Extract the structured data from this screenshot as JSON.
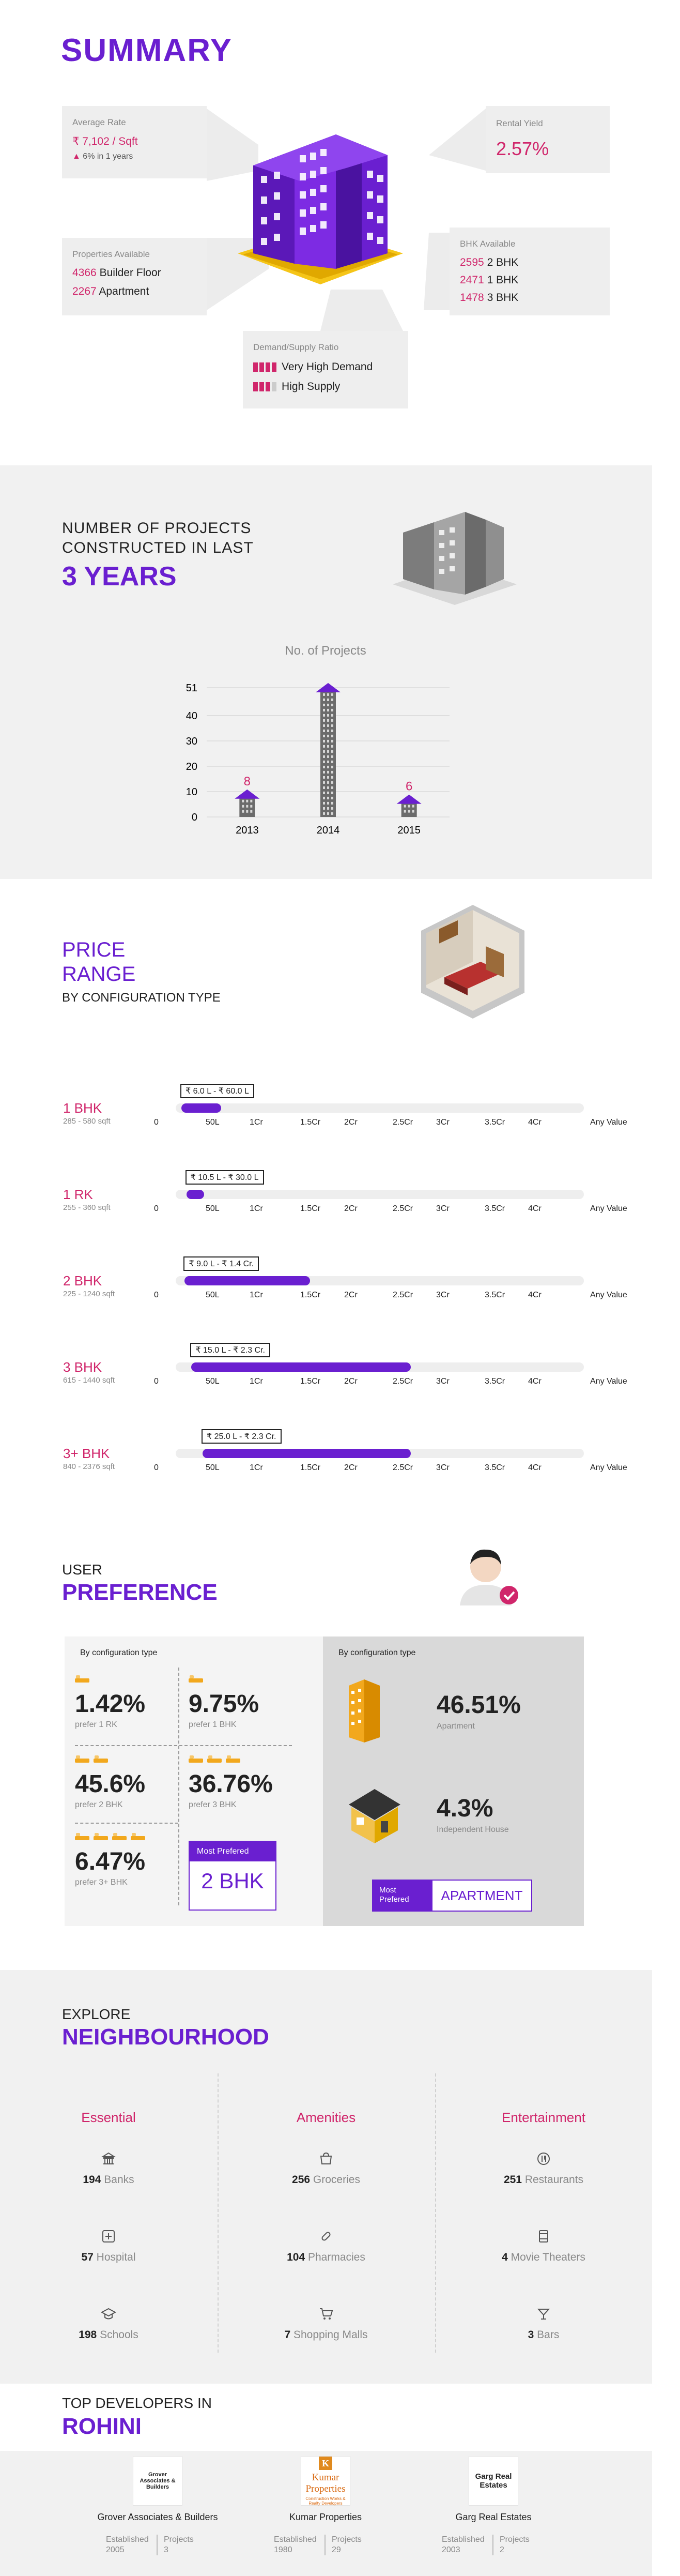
{
  "summary": {
    "title": "SUMMARY",
    "average_rate": {
      "label": "Average Rate",
      "value": "₹ 7,102 / Sqft",
      "change": "6% in 1 years"
    },
    "rental_yield": {
      "label": "Rental Yield",
      "value": "2.57%"
    },
    "properties_available": {
      "label": "Properties Available",
      "rows": [
        {
          "count": "4366",
          "type": "Builder Floor"
        },
        {
          "count": "2267",
          "type": "Apartment"
        }
      ]
    },
    "bhk_available": {
      "label": "BHK Available",
      "rows": [
        {
          "count": "2595",
          "type": "2 BHK"
        },
        {
          "count": "2471",
          "type": "1 BHK"
        },
        {
          "count": "1478",
          "type": "3 BHK"
        }
      ]
    },
    "demand_supply": {
      "label": "Demand/Supply Ratio",
      "rows": [
        {
          "text": "Very High Demand",
          "level": 4
        },
        {
          "text": "High Supply",
          "level": 3
        }
      ]
    },
    "colors": {
      "accent": "#6a1fd0",
      "highlight": "#d0266b",
      "yellow": "#f5c518"
    }
  },
  "projects": {
    "heading_line1": "NUMBER OF PROJECTS",
    "heading_line2": "CONSTRUCTED IN LAST",
    "heading_big": "3 YEARS",
    "chart_data": {
      "type": "bar",
      "title": "No. of Projects",
      "categories": [
        "2013",
        "2014",
        "2015"
      ],
      "values": [
        8,
        50,
        6
      ],
      "yticks": [
        "0",
        "10",
        "20",
        "30",
        "40",
        "51"
      ],
      "ylim": [
        0,
        51
      ],
      "grid": true
    }
  },
  "price_range": {
    "heading_line1": "PRICE",
    "heading_line2": "RANGE",
    "heading_sub": "BY CONFIGURATION TYPE",
    "axis": [
      "0",
      "50L",
      "1Cr",
      "1.5Cr",
      "2Cr",
      "2.5Cr",
      "3Cr",
      "3.5Cr",
      "4Cr",
      "Any Value"
    ],
    "rows": [
      {
        "name": "1 BHK",
        "sqft": "285 - 580 sqft",
        "tag": "₹ 6.0 L - ₹ 60.0 L",
        "min": 0.06,
        "max": 0.6
      },
      {
        "name": "1 RK",
        "sqft": "255 - 360 sqft",
        "tag": "₹ 10.5 L - ₹ 30.0 L",
        "min": 0.105,
        "max": 0.3
      },
      {
        "name": "2 BHK",
        "sqft": "225 - 1240 sqft",
        "tag": "₹ 9.0 L - ₹ 1.4 Cr.",
        "min": 0.09,
        "max": 1.4
      },
      {
        "name": "3 BHK",
        "sqft": "615 - 1440 sqft",
        "tag": "₹ 15.0 L - ₹ 2.3 Cr.",
        "min": 0.15,
        "max": 2.3
      },
      {
        "name": "3+ BHK",
        "sqft": "840 - 2376 sqft",
        "tag": "₹ 25.0 L - ₹ 2.3 Cr.",
        "min": 0.25,
        "max": 2.3
      }
    ]
  },
  "preference": {
    "heading_small": "USER",
    "heading_big": "PREFERENCE",
    "left_label": "By configuration type",
    "right_label": "By configuration type",
    "cells": [
      {
        "pct": "1.42%",
        "sub": "prefer 1 RK",
        "beds": 1
      },
      {
        "pct": "9.75%",
        "sub": "prefer 1 BHK",
        "beds": 1
      },
      {
        "pct": "45.6%",
        "sub": "prefer 2 BHK",
        "beds": 2
      },
      {
        "pct": "36.76%",
        "sub": "prefer 3 BHK",
        "beds": 3
      },
      {
        "pct": "6.47%",
        "sub": "prefer 3+ BHK",
        "beds": 4
      }
    ],
    "most_preferred_label": "Most Prefered",
    "most_preferred_value": "2 BHK",
    "types": [
      {
        "pct": "46.51%",
        "sub": "Apartment"
      },
      {
        "pct": "4.3%",
        "sub": "Independent House"
      }
    ],
    "type_most_preferred_label": "Most Prefered",
    "type_most_preferred_value": "APARTMENT"
  },
  "neighbourhood": {
    "heading_small": "EXPLORE",
    "heading_big": "NEIGHBOURHOOD",
    "columns": [
      {
        "title": "Essential",
        "items": [
          {
            "count": "194",
            "name": "Banks",
            "icon": "bank-icon"
          },
          {
            "count": "57",
            "name": "Hospital",
            "icon": "hospital-icon"
          },
          {
            "count": "198",
            "name": "Schools",
            "icon": "school-icon"
          }
        ]
      },
      {
        "title": "Amenities",
        "items": [
          {
            "count": "256",
            "name": "Groceries",
            "icon": "grocery-icon"
          },
          {
            "count": "104",
            "name": "Pharmacies",
            "icon": "pharmacy-icon"
          },
          {
            "count": "7",
            "name": "Shopping Malls",
            "icon": "cart-icon"
          }
        ]
      },
      {
        "title": "Entertainment",
        "items": [
          {
            "count": "251",
            "name": "Restaurants",
            "icon": "restaurant-icon"
          },
          {
            "count": "4",
            "name": "Movie Theaters",
            "icon": "movie-icon"
          },
          {
            "count": "3",
            "name": "Bars",
            "icon": "cocktail-icon"
          }
        ]
      }
    ]
  },
  "developers": {
    "heading_small": "TOP DEVELOPERS IN",
    "heading_big": "ROHINI",
    "established_label": "Established",
    "projects_label": "Projects",
    "items": [
      {
        "name": "Grover Associates & Builders",
        "logo_text": "Grover Associates & Builders",
        "established": "2005",
        "projects": "3"
      },
      {
        "name": "Kumar Properties",
        "logo_text": "Kumar Properties",
        "logo_sub": "Construction Works & Realty Developers",
        "established": "1980",
        "projects": "29"
      },
      {
        "name": "Garg Real Estates",
        "logo_text": "Garg Real Estates",
        "established": "2003",
        "projects": "2"
      }
    ]
  }
}
